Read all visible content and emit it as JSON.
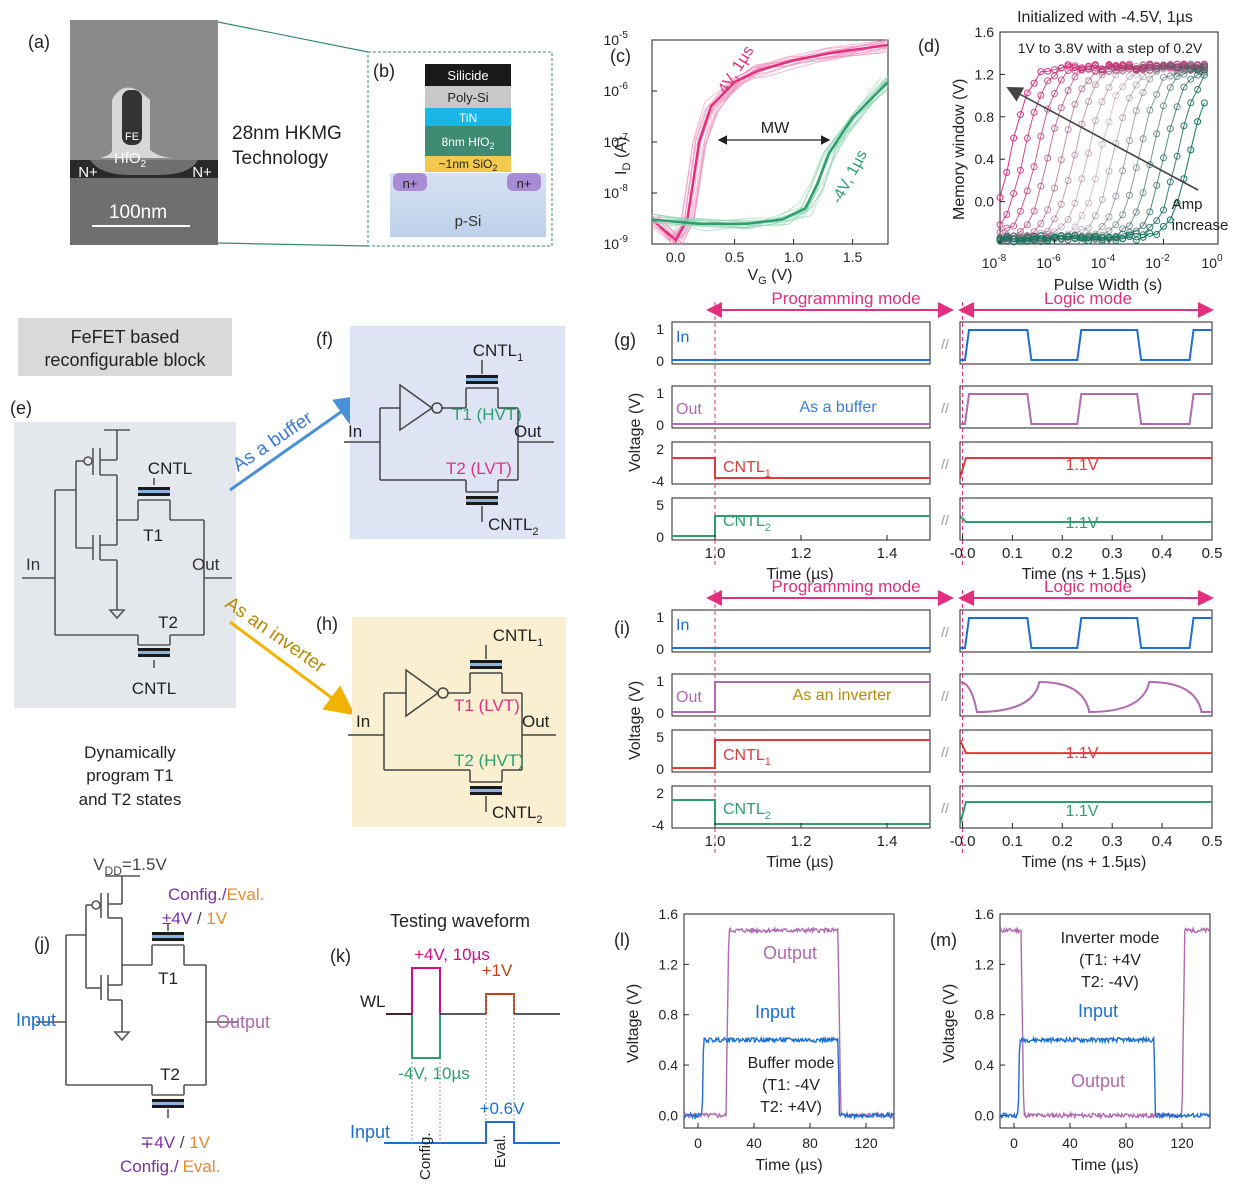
{
  "panels": {
    "a": {
      "label": "(a)",
      "fe": "FE",
      "hfo": "HfO",
      "hfo_sub": "2",
      "np_left": "N+",
      "np_right": "N+",
      "scale": "100nm",
      "tech1": "28nm HKMG",
      "tech2": "Technology"
    },
    "b": {
      "label": "(b)",
      "layers": [
        "Silicide",
        "Poly-Si",
        "TiN",
        "8nm HfO",
        "~1nm SiO"
      ],
      "layer_sub": [
        "",
        "",
        "",
        "2",
        "2"
      ],
      "np1": "n+",
      "np2": "n+",
      "substrate": "p-Si"
    },
    "c": {
      "label": "(c)",
      "ylabel": "I",
      "ylabel_sub": "D",
      "ylabel_unit": " (A)",
      "xlabel": "V",
      "xlabel_sub": "G",
      "xlabel_unit": " (V)",
      "yticks": [
        "10",
        "10",
        "10",
        "10",
        "10"
      ],
      "yexp": [
        "-5",
        "-6",
        "-7",
        "-8",
        "-9"
      ],
      "xticks": [
        "0.0",
        "0.5",
        "1.0",
        "1.5"
      ],
      "curve_prog": "4V, 1µs",
      "curve_erase": "-4V, 1µs",
      "mw": "MW"
    },
    "d": {
      "label": "(d)",
      "title": "Initialized with -4.5V, 1µs",
      "subtitle": "1V to 3.8V with a step of 0.2V",
      "ylabel": "Memory window (V)",
      "xlabel": "Pulse Width (s)",
      "yticks": [
        "1.6",
        "1.2",
        "0.8",
        "0.4",
        "0.0"
      ],
      "xticks": [
        "10",
        "10",
        "10",
        "10",
        "10"
      ],
      "xexp": [
        "-8",
        "-6",
        "-4",
        "-2",
        "0"
      ],
      "amp1": "Amp",
      "amp2": "increase"
    },
    "e": {
      "label": "(e)",
      "box1": "FeFET based",
      "box2": "reconfigurable block",
      "cntl_top": "CNTL",
      "cntl_bot": "CNTL",
      "t1": "T1",
      "t2": "T2",
      "in": "In",
      "out": "Out",
      "arrow_buffer": "As a buffer",
      "arrow_inverter": "As an inverter",
      "note1": "Dynamically",
      "note2": "program T1",
      "note3": "and T2 states"
    },
    "f": {
      "label": "(f)",
      "cntl1": "CNTL",
      "cntl2": "CNTL",
      "t1": "T1 (HVT)",
      "t2": "T2 (LVT)",
      "in": "In",
      "out": "Out"
    },
    "h": {
      "label": "(h)",
      "cntl1": "CNTL",
      "cntl2": "CNTL",
      "t1": "T1 (LVT)",
      "t2": "T2 (HVT)",
      "in": "In",
      "out": "Out"
    },
    "g": {
      "label": "(g)",
      "prog": "Programming mode",
      "logic": "Logic mode",
      "in": "In",
      "out": "Out",
      "buffer": "As a buffer",
      "cntl1": "CNTL",
      "cntl2": "CNTL",
      "v11a": "1.1V",
      "v11b": "1.1V",
      "ylabel": "Voltage (V)",
      "xlabel1": "Time (µs)",
      "xlabel2": "Time (ns + 1.5µs)",
      "xticks1": [
        "1.0",
        "1.2",
        "1.4"
      ],
      "xticks2": [
        "-0.0",
        "0.1",
        "0.2",
        "0.3",
        "0.4",
        "0.5"
      ],
      "yt_in": [
        "1",
        "0"
      ],
      "yt_out": [
        "1",
        "0"
      ],
      "yt_c1": [
        "2",
        "-4"
      ],
      "yt_c2": [
        "5",
        "0"
      ]
    },
    "i": {
      "label": "(i)",
      "prog": "Programming mode",
      "logic": "Logic mode",
      "in": "In",
      "out": "Out",
      "inverter": "As an inverter",
      "cntl1": "CNTL",
      "cntl2": "CNTL",
      "v11a": "1.1V",
      "v11b": "1.1V",
      "ylabel": "Voltage (V)",
      "xlabel1": "Time (µs)",
      "xlabel2": "Time (ns + 1.5µs)",
      "xticks1": [
        "1.0",
        "1.2",
        "1.4"
      ],
      "xticks2": [
        "-0.0",
        "0.1",
        "0.2",
        "0.3",
        "0.4",
        "0.5"
      ],
      "yt_in": [
        "1",
        "0"
      ],
      "yt_out": [
        "1",
        "0"
      ],
      "yt_c1": [
        "5",
        "0"
      ],
      "yt_c2": [
        "2",
        "-4"
      ]
    },
    "j": {
      "label": "(j)",
      "vdd": "V",
      "vdd_sub": "DD",
      "vdd_val": "=1.5V",
      "cfg": "Config./",
      "evl": "Eval.",
      "v1a": "±4V",
      "v1b": "1V",
      "slash": " / ",
      "t1": "T1",
      "t2": "T2",
      "input": "Input",
      "output": "Output",
      "v2a": "∓4V",
      "v2b": "1V",
      "cfg2": "Config./",
      "evl2": "Eval."
    },
    "k": {
      "label": "(k)",
      "title": "Testing waveform",
      "wl": "WL",
      "p4": "+4V, 10µs",
      "m4": "-4V, 10µs",
      "p1": "+1V",
      "p06": "+0.6V",
      "input": "Input",
      "config": "Config.",
      "eval": "Eval."
    },
    "l": {
      "label": "(l)",
      "ylabel": "Voltage (V)",
      "xlabel": "Time (µs)",
      "output": "Output",
      "input": "Input",
      "mode1": "Buffer mode",
      "mode2": "(T1: -4V",
      "mode3": "T2: +4V)",
      "yticks": [
        "1.6",
        "1.2",
        "0.8",
        "0.4",
        "0.0"
      ],
      "xticks": [
        "0",
        "40",
        "80",
        "120"
      ]
    },
    "m": {
      "label": "(m)",
      "ylabel": "Voltage (V)",
      "xlabel": "Time (µs)",
      "output": "Output",
      "input": "Input",
      "mode1": "Inverter mode",
      "mode2": "(T1: +4V",
      "mode3": "T2: -4V)",
      "yticks": [
        "1.6",
        "1.2",
        "0.8",
        "0.4",
        "0.0"
      ],
      "xticks": [
        "0",
        "40",
        "80",
        "120"
      ]
    }
  },
  "colors": {
    "pink": "#e0307f",
    "green": "#2e9e6e",
    "blue": "#1a6fd1",
    "red": "#e03a3a",
    "purple": "#b06ab0",
    "gold": "#c9a227",
    "orange": "#e88a2c",
    "violet": "#7b2fa8"
  },
  "chart_data": [
    {
      "type": "line",
      "title": "",
      "xlabel": "V_G (V)",
      "ylabel": "I_D (A)",
      "xlim": [
        -0.2,
        1.8
      ],
      "ylim": [
        1e-09,
        1e-05
      ],
      "yscale": "log",
      "series": [
        {
          "name": "4V, 1µs",
          "x": [
            -0.2,
            0.0,
            0.1,
            0.2,
            0.3,
            0.5,
            0.7,
            1.0,
            1.3,
            1.8
          ],
          "values": [
            3e-09,
            1.2e-09,
            3e-09,
            1e-07,
            5e-07,
            1.5e-06,
            2.5e-06,
            4e-06,
            5.5e-06,
            8e-06
          ]
        },
        {
          "name": "-4V, 1µs",
          "x": [
            -0.2,
            0.2,
            0.6,
            0.9,
            1.1,
            1.2,
            1.3,
            1.5,
            1.8
          ],
          "values": [
            3e-09,
            2.5e-09,
            2.5e-09,
            3e-09,
            5e-09,
            1.5e-08,
            6e-08,
            3e-07,
            1.5e-06
          ]
        }
      ]
    },
    {
      "type": "scatter",
      "title": "Initialized with -4.5V, 1µs",
      "xlabel": "Pulse Width (s)",
      "ylabel": "Memory window (V)",
      "xscale": "log",
      "xlim": [
        1e-08,
        1
      ],
      "ylim": [
        -0.4,
        1.6
      ]
    },
    {
      "type": "line",
      "xlabel": "Time (µs)",
      "ylabel": "Voltage (V)",
      "xlim": [
        -10,
        140
      ],
      "ylim": [
        -0.1,
        1.6
      ],
      "series": [
        {
          "name": "Output",
          "x": [
            0,
            20,
            22,
            100,
            102,
            140
          ],
          "values": [
            0,
            0,
            1.47,
            1.47,
            0,
            0
          ]
        },
        {
          "name": "Input",
          "x": [
            0,
            3,
            4,
            100,
            101,
            140
          ],
          "values": [
            0,
            0,
            0.6,
            0.6,
            0,
            0
          ]
        }
      ]
    },
    {
      "type": "line",
      "xlabel": "Time (µs)",
      "ylabel": "Voltage (V)",
      "xlim": [
        -10,
        140
      ],
      "ylim": [
        -0.1,
        1.6
      ],
      "series": [
        {
          "name": "Output",
          "x": [
            -10,
            5,
            7,
            120,
            122,
            140
          ],
          "values": [
            1.47,
            1.47,
            0,
            0,
            1.47,
            1.47
          ]
        },
        {
          "name": "Input",
          "x": [
            0,
            3,
            4,
            100,
            101,
            140
          ],
          "values": [
            0,
            0,
            0.6,
            0.6,
            0,
            0
          ]
        }
      ]
    }
  ]
}
